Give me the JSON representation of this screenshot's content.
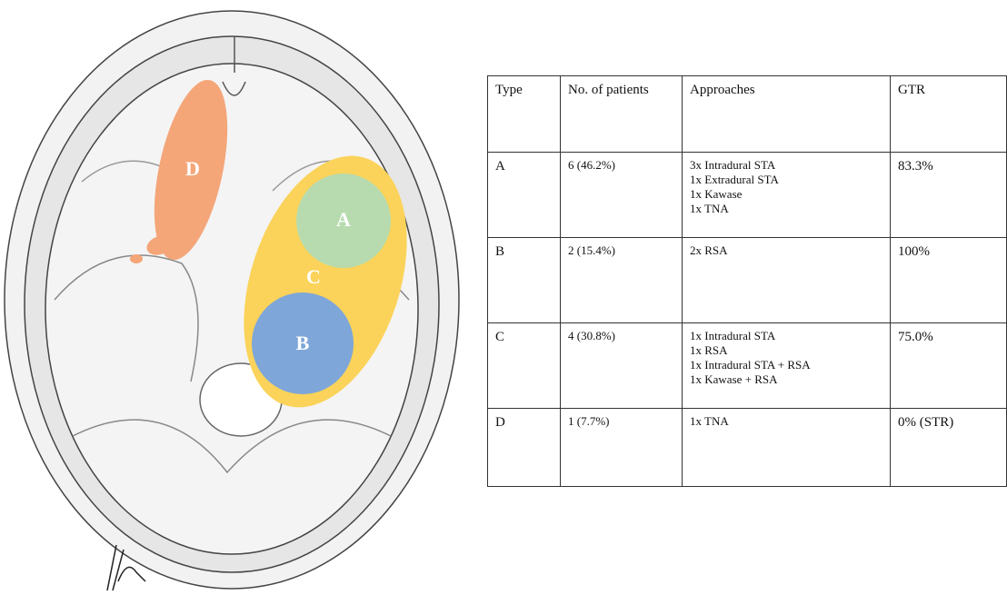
{
  "diagram": {
    "labels": [
      "A",
      "B",
      "C",
      "D"
    ]
  },
  "table": {
    "header": [
      "Type",
      "No. of patients",
      "Approaches",
      "GTR"
    ],
    "rows": [
      [
        "A",
        "6 (46.2%)",
        [
          "3x Intradural STA",
          "1x Extradural STA",
          "1x Kawase",
          "1x TNA"
        ],
        "83.3%"
      ],
      [
        "B",
        "2 (15.4%)",
        [
          "2x RSA"
        ],
        "100%"
      ],
      [
        "C",
        "4 (30.8%)",
        [
          "1x Intradural STA",
          "1x RSA",
          "1x Intradural STA + RSA",
          "1x Kawase + RSA"
        ],
        "75.0%"
      ],
      [
        "D",
        "1 (7.7%)",
        [
          "1x TNA"
        ],
        "0% (STR)"
      ]
    ]
  }
}
